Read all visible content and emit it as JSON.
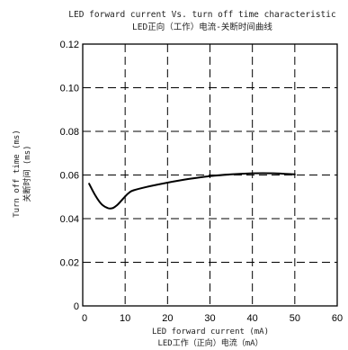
{
  "chart_data": {
    "type": "line",
    "title": "LED forward current Vs. turn off time characteristic",
    "subtitle": "LED正向（工作）电流-关断时间曲线",
    "xlabel": "LED forward current (mA)",
    "xlabel_cn": "LED工作（正向）电流（mA）",
    "ylabel": "Turn off time (ms)",
    "ylabel_cn": "关断时间 (ms)",
    "xlim": [
      0,
      60
    ],
    "ylim": [
      0,
      0.12
    ],
    "x_ticks": [
      "0",
      "10",
      "20",
      "30",
      "40",
      "50",
      "60"
    ],
    "y_ticks": [
      "0",
      "0.02",
      "0.04",
      "0.06",
      "0.08",
      "0.10",
      "0.12"
    ],
    "grid": true,
    "series": [
      {
        "x": [
          1.5,
          3,
          4.5,
          6,
          7,
          8,
          9,
          10,
          11,
          12,
          15,
          20,
          25,
          30,
          35,
          40,
          45,
          50
        ],
        "y": [
          0.056,
          0.0505,
          0.0465,
          0.0448,
          0.0448,
          0.046,
          0.048,
          0.0502,
          0.052,
          0.053,
          0.0545,
          0.0565,
          0.0582,
          0.0595,
          0.0603,
          0.0608,
          0.0608,
          0.0603
        ]
      }
    ]
  }
}
